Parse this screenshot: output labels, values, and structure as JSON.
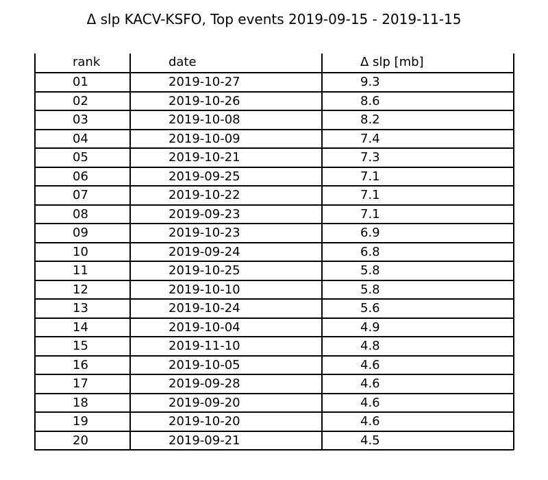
{
  "title": "Δ slp KACV-KSFO, Top events 2019-09-15 - 2019-11-15",
  "chart_data": {
    "type": "table",
    "title": "Δ slp KACV-KSFO, Top events 2019-09-15 - 2019-11-15",
    "columns": [
      "rank",
      "date",
      "Δ slp [mb]"
    ],
    "rows": [
      [
        "01",
        "2019-10-27",
        "9.3"
      ],
      [
        "02",
        "2019-10-26",
        "8.6"
      ],
      [
        "03",
        "2019-10-08",
        "8.2"
      ],
      [
        "04",
        "2019-10-09",
        "7.4"
      ],
      [
        "05",
        "2019-10-21",
        "7.3"
      ],
      [
        "06",
        "2019-09-25",
        "7.1"
      ],
      [
        "07",
        "2019-10-22",
        "7.1"
      ],
      [
        "08",
        "2019-09-23",
        "7.1"
      ],
      [
        "09",
        "2019-10-23",
        "6.9"
      ],
      [
        "10",
        "2019-09-24",
        "6.8"
      ],
      [
        "11",
        "2019-10-25",
        "5.8"
      ],
      [
        "12",
        "2019-10-10",
        "5.8"
      ],
      [
        "13",
        "2019-10-24",
        "5.6"
      ],
      [
        "14",
        "2019-10-04",
        "4.9"
      ],
      [
        "15",
        "2019-11-10",
        "4.8"
      ],
      [
        "16",
        "2019-10-05",
        "4.6"
      ],
      [
        "17",
        "2019-09-28",
        "4.6"
      ],
      [
        "18",
        "2019-09-20",
        "4.6"
      ],
      [
        "19",
        "2019-10-20",
        "4.6"
      ],
      [
        "20",
        "2019-09-21",
        "4.5"
      ]
    ]
  }
}
